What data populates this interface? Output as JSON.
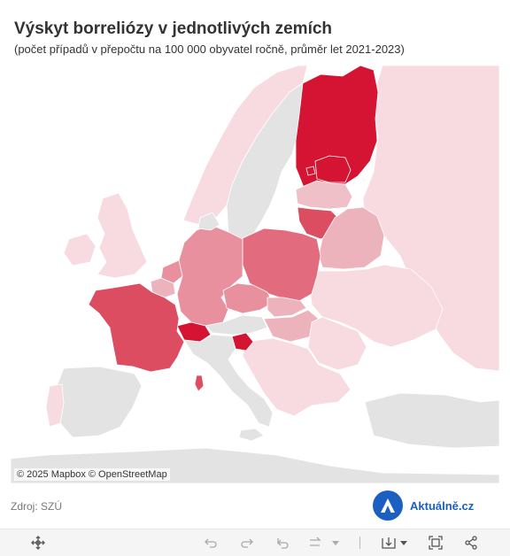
{
  "header": {
    "title": "Výskyt borreliózy v jednotlivých zemích",
    "subtitle": "(počet případů v přepočtu na 100 000 obyvatel ročně, průměr let 2021-2023)"
  },
  "map": {
    "attribution": {
      "mapbox": "© 2025 Mapbox",
      "osm": "© OpenStreetMap"
    },
    "colors": {
      "water": "#ffffff",
      "no_data": "#e3e3e3",
      "level_1": "#f7dbe0",
      "level_2": "#f0c0c9",
      "level_3": "#ecb3bd",
      "level_4": "#e8909e",
      "level_5": "#e26c7d",
      "level_6": "#dc4d62",
      "level_7": "#d41432"
    },
    "regions": [
      {
        "id": "finland",
        "level": "level_7"
      },
      {
        "id": "estonia",
        "level": "level_7"
      },
      {
        "id": "lithuania",
        "level": "level_6"
      },
      {
        "id": "switzerland",
        "level": "level_7"
      },
      {
        "id": "slovenia",
        "level": "level_7"
      },
      {
        "id": "france",
        "level": "level_6"
      },
      {
        "id": "poland",
        "level": "level_5"
      },
      {
        "id": "germany",
        "level": "level_4"
      },
      {
        "id": "czechia",
        "level": "level_4"
      },
      {
        "id": "netherlands",
        "level": "level_4"
      },
      {
        "id": "belgium",
        "level": "level_3"
      },
      {
        "id": "belarus",
        "level": "level_3"
      },
      {
        "id": "slovakia",
        "level": "level_3"
      },
      {
        "id": "hungary",
        "level": "level_3"
      },
      {
        "id": "latvia",
        "level": "level_2"
      },
      {
        "id": "united-kingdom",
        "level": "level_1"
      },
      {
        "id": "ireland",
        "level": "level_1"
      },
      {
        "id": "norway",
        "level": "level_1"
      },
      {
        "id": "russia",
        "level": "level_1"
      },
      {
        "id": "ukraine",
        "level": "level_1"
      },
      {
        "id": "romania",
        "level": "level_1"
      },
      {
        "id": "portugal",
        "level": "level_1"
      }
    ]
  },
  "footer": {
    "source": "Zdroj: SZÚ",
    "brand": "Aktuálně.cz",
    "brand_color": "#1b5fc2"
  },
  "toolbar": {
    "icons": [
      "move-icon",
      "undo-icon",
      "redo-icon",
      "revert-icon",
      "refresh-icon",
      "download-icon",
      "fullscreen-icon",
      "share-icon"
    ]
  }
}
